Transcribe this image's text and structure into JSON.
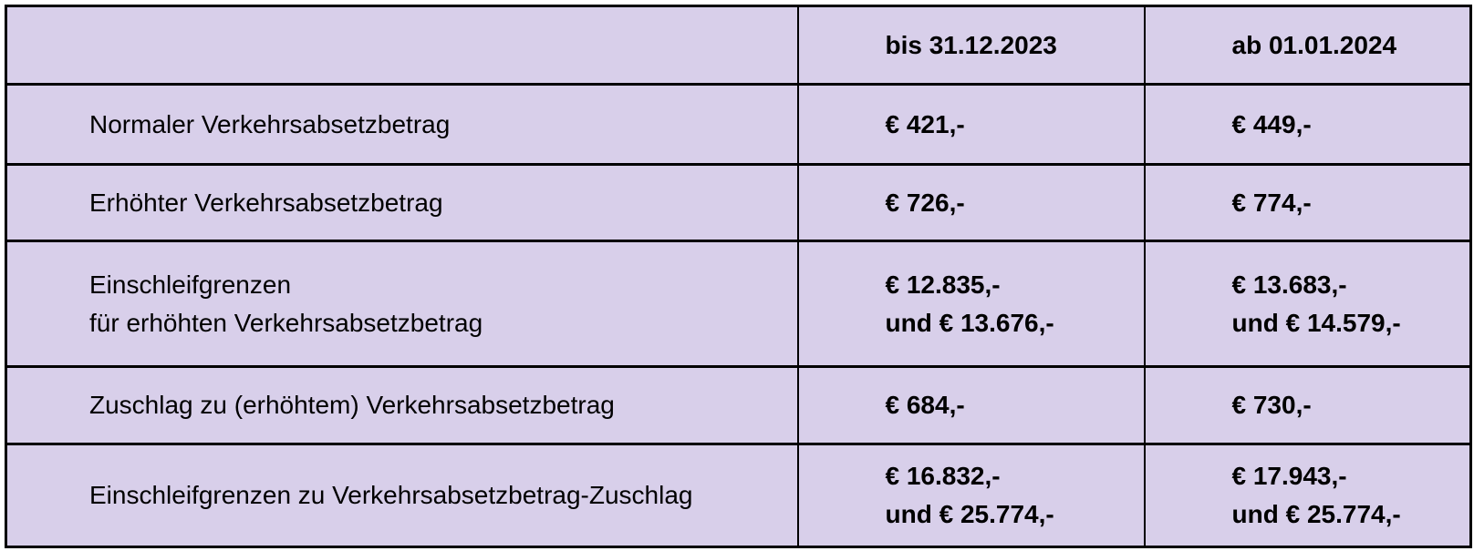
{
  "page": {
    "background_color": "#ffffff"
  },
  "table": {
    "colors": {
      "cell_background": "#d8cfea",
      "border": "#000000",
      "text": "#000000"
    },
    "header": {
      "corner": "",
      "bis": "bis 31.12.2023",
      "ab": "ab 01.01.2024"
    },
    "rows": [
      {
        "label": [
          "Normaler Verkehrsabsetzbetrag"
        ],
        "bis": [
          "€ 421,-"
        ],
        "ab": [
          "€ 449,-"
        ]
      },
      {
        "label": [
          "Erhöhter Verkehrsabsetzbetrag"
        ],
        "bis": [
          "€ 726,-"
        ],
        "ab": [
          "€ 774,-"
        ]
      },
      {
        "label": [
          "Einschleifgrenzen",
          "für erhöhten Verkehrsabsetzbetrag"
        ],
        "bis": [
          "€ 12.835,-",
          "und € 13.676,-"
        ],
        "ab": [
          "€ 13.683,-",
          "und € 14.579,-"
        ]
      },
      {
        "label": [
          "Zuschlag zu (erhöhtem) Verkehrsabsetzbetrag"
        ],
        "bis": [
          "€ 684,-"
        ],
        "ab": [
          "€ 730,-"
        ]
      },
      {
        "label": [
          "Einschleifgrenzen zu Verkehrsabsetzbetrag-Zuschlag"
        ],
        "bis": [
          "€ 16.832,-",
          "und € 25.774,-"
        ],
        "ab": [
          "€ 17.943,-",
          "und € 25.774,-"
        ]
      }
    ]
  }
}
